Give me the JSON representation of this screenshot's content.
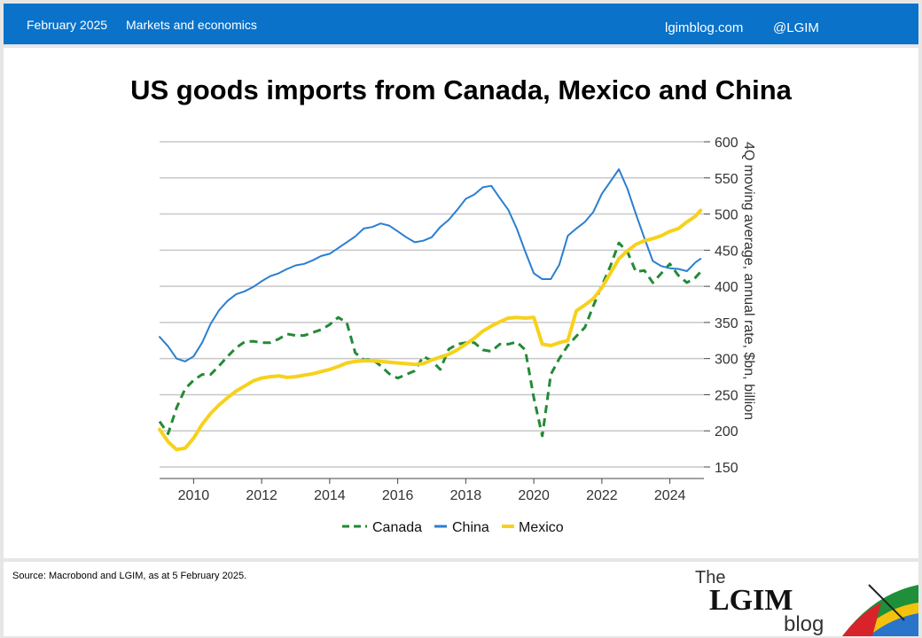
{
  "header": {
    "date": "February 2025",
    "category": "Markets and economics",
    "site": "lgimblog.com",
    "handle": "@LGIM"
  },
  "title": "US goods imports from Canada, Mexico and China",
  "source": "Source: Macrobond and LGIM,  as at 5 February 2025.",
  "brand": {
    "the": "The",
    "lgim": "LGIM",
    "blog": "blog"
  },
  "colors": {
    "canada": "#238a35",
    "china": "#2a7fd1",
    "mexico": "#f7d11b",
    "bar": "#0a72c9",
    "grid": "#c8c8c8"
  },
  "chart_data": {
    "type": "line",
    "ylabel": "4Q moving average, annual rate, $bn, billion",
    "ylim": [
      150,
      600
    ],
    "yticks": [
      150,
      200,
      250,
      300,
      350,
      400,
      450,
      500,
      550,
      600
    ],
    "xlim": [
      2009.0,
      2025.0
    ],
    "xticks": [
      2010,
      2012,
      2014,
      2016,
      2018,
      2020,
      2022,
      2024
    ],
    "grid": true,
    "legend_position": "bottom",
    "series": [
      {
        "name": "Canada",
        "style": "dashed",
        "x": [
          2009.0,
          2009.25,
          2009.5,
          2009.75,
          2010.0,
          2010.25,
          2010.5,
          2010.75,
          2011.0,
          2011.25,
          2011.5,
          2011.75,
          2012.0,
          2012.25,
          2012.5,
          2012.75,
          2013.0,
          2013.25,
          2013.5,
          2013.75,
          2014.0,
          2014.25,
          2014.5,
          2014.75,
          2015.0,
          2015.25,
          2015.5,
          2015.75,
          2016.0,
          2016.25,
          2016.5,
          2016.75,
          2017.0,
          2017.25,
          2017.5,
          2017.75,
          2018.0,
          2018.25,
          2018.5,
          2018.75,
          2019.0,
          2019.25,
          2019.5,
          2019.75,
          2020.0,
          2020.25,
          2020.5,
          2020.75,
          2021.0,
          2021.25,
          2021.5,
          2021.75,
          2022.0,
          2022.25,
          2022.5,
          2022.75,
          2023.0,
          2023.25,
          2023.5,
          2023.75,
          2024.0,
          2024.25,
          2024.5,
          2024.75,
          2024.9
        ],
        "values": [
          213,
          196,
          232,
          258,
          270,
          278,
          278,
          290,
          303,
          315,
          323,
          324,
          322,
          322,
          327,
          334,
          332,
          332,
          336,
          340,
          347,
          357,
          350,
          308,
          298,
          299,
          290,
          279,
          273,
          278,
          283,
          303,
          297,
          285,
          313,
          320,
          322,
          322,
          312,
          310,
          320,
          320,
          323,
          312,
          246,
          193,
          278,
          300,
          318,
          331,
          343,
          373,
          401,
          428,
          460,
          448,
          420,
          422,
          405,
          418,
          431,
          415,
          405,
          412,
          420
        ]
      },
      {
        "name": "China",
        "style": "solid",
        "x": [
          2009.0,
          2009.25,
          2009.5,
          2009.75,
          2010.0,
          2010.25,
          2010.5,
          2010.75,
          2011.0,
          2011.25,
          2011.5,
          2011.75,
          2012.0,
          2012.25,
          2012.5,
          2012.75,
          2013.0,
          2013.25,
          2013.5,
          2013.75,
          2014.0,
          2014.25,
          2014.5,
          2014.75,
          2015.0,
          2015.25,
          2015.5,
          2015.75,
          2016.0,
          2016.25,
          2016.5,
          2016.75,
          2017.0,
          2017.25,
          2017.5,
          2017.75,
          2018.0,
          2018.25,
          2018.5,
          2018.75,
          2019.0,
          2019.25,
          2019.5,
          2019.75,
          2020.0,
          2020.25,
          2020.5,
          2020.75,
          2021.0,
          2021.25,
          2021.5,
          2021.75,
          2022.0,
          2022.25,
          2022.5,
          2022.75,
          2023.0,
          2023.25,
          2023.5,
          2023.75,
          2024.0,
          2024.25,
          2024.5,
          2024.75,
          2024.9
        ],
        "values": [
          330,
          317,
          300,
          296,
          303,
          322,
          348,
          367,
          380,
          389,
          393,
          399,
          407,
          414,
          418,
          424,
          429,
          431,
          436,
          442,
          445,
          453,
          461,
          469,
          480,
          482,
          487,
          484,
          476,
          468,
          461,
          463,
          468,
          482,
          492,
          506,
          521,
          527,
          537,
          539,
          522,
          506,
          480,
          448,
          418,
          410,
          410,
          430,
          470,
          480,
          489,
          503,
          528,
          545,
          562,
          535,
          500,
          467,
          435,
          428,
          425,
          424,
          421,
          433,
          438
        ]
      },
      {
        "name": "Mexico",
        "style": "solid",
        "x": [
          2009.0,
          2009.25,
          2009.5,
          2009.75,
          2010.0,
          2010.25,
          2010.5,
          2010.75,
          2011.0,
          2011.25,
          2011.5,
          2011.75,
          2012.0,
          2012.25,
          2012.5,
          2012.75,
          2013.0,
          2013.25,
          2013.5,
          2013.75,
          2014.0,
          2014.25,
          2014.5,
          2014.75,
          2015.0,
          2015.25,
          2015.5,
          2015.75,
          2016.0,
          2016.25,
          2016.5,
          2016.75,
          2017.0,
          2017.25,
          2017.5,
          2017.75,
          2018.0,
          2018.25,
          2018.5,
          2018.75,
          2019.0,
          2019.25,
          2019.5,
          2019.75,
          2020.0,
          2020.25,
          2020.5,
          2020.75,
          2021.0,
          2021.25,
          2021.5,
          2021.75,
          2022.0,
          2022.25,
          2022.5,
          2022.75,
          2023.0,
          2023.25,
          2023.5,
          2023.75,
          2024.0,
          2024.25,
          2024.5,
          2024.75,
          2024.9
        ],
        "values": [
          202,
          185,
          174,
          176,
          190,
          209,
          224,
          236,
          246,
          255,
          262,
          269,
          273,
          275,
          276,
          274,
          275,
          277,
          279,
          282,
          285,
          289,
          294,
          296,
          297,
          297,
          296,
          295,
          294,
          293,
          292,
          293,
          298,
          302,
          306,
          312,
          320,
          328,
          338,
          345,
          351,
          356,
          357,
          356,
          357,
          320,
          318,
          322,
          325,
          366,
          374,
          383,
          398,
          418,
          438,
          449,
          458,
          463,
          466,
          470,
          476,
          480,
          489,
          497,
          505
        ]
      }
    ]
  }
}
